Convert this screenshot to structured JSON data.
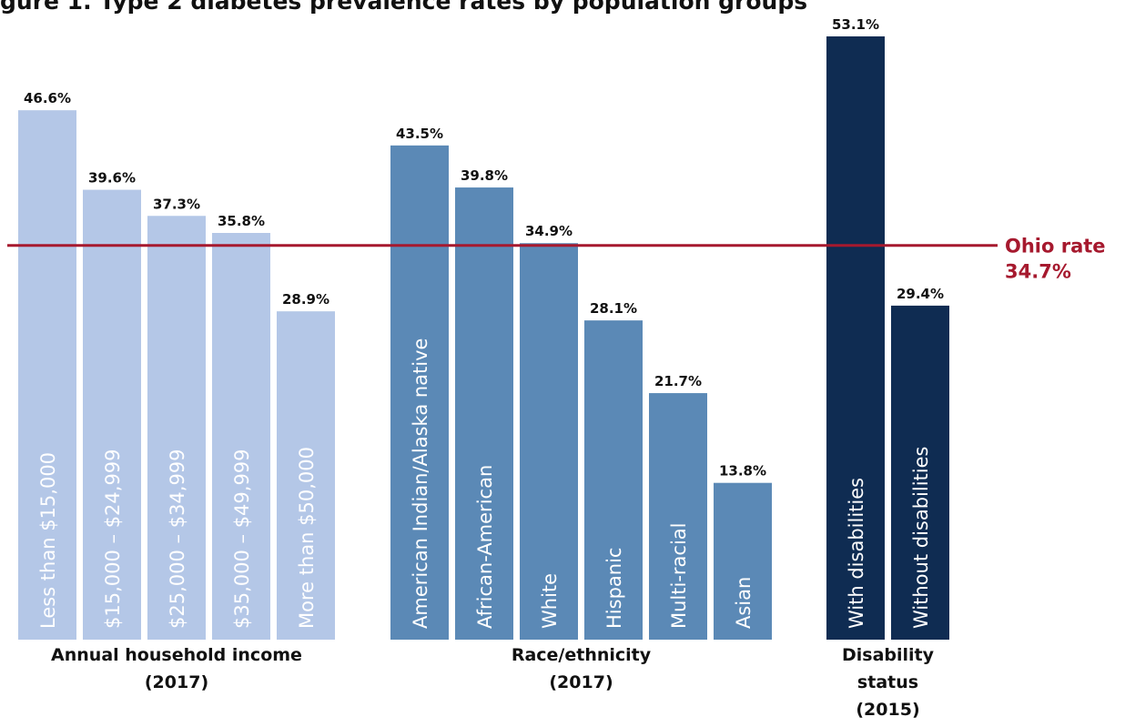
{
  "chart_data": {
    "type": "bar",
    "title": "gure 1. Type 2 diabetes prevalence rates by population groups",
    "groups": [
      {
        "name": "Annual household income",
        "period": "(2017)",
        "color": "#b4c7e7",
        "bars": [
          {
            "category": "Less than $15,000",
            "value": 46.6,
            "value_label": "46.6%"
          },
          {
            "category": "$15,000 – $24,999",
            "value": 39.6,
            "value_label": "39.6%"
          },
          {
            "category": "$25,000 – $34,999",
            "value": 37.3,
            "value_label": "37.3%"
          },
          {
            "category": "$35,000 – $49,999",
            "value": 35.8,
            "value_label": "35.8%"
          },
          {
            "category": "More than $50,000",
            "value": 28.9,
            "value_label": "28.9%"
          }
        ]
      },
      {
        "name": "Race/ethnicity",
        "period": "(2017)",
        "color": "#5b89b6",
        "bars": [
          {
            "category": "American Indian/Alaska native",
            "value": 43.5,
            "value_label": "43.5%"
          },
          {
            "category": "African-American",
            "value": 39.8,
            "value_label": "39.8%"
          },
          {
            "category": "White",
            "value": 34.9,
            "value_label": "34.9%"
          },
          {
            "category": "Hispanic",
            "value": 28.1,
            "value_label": "28.1%"
          },
          {
            "category": "Multi-racial",
            "value": 21.7,
            "value_label": "21.7%"
          },
          {
            "category": "Asian",
            "value": 13.8,
            "value_label": "13.8%"
          }
        ]
      },
      {
        "name": "Disability\nstatus",
        "period": "(2015)",
        "color": "#0f2c52",
        "bars": [
          {
            "category": "With disabilities",
            "value": 53.1,
            "value_label": "53.1%"
          },
          {
            "category": "Without disabilities",
            "value": 29.4,
            "value_label": "29.4%"
          }
        ]
      }
    ],
    "reference_line": {
      "label": "Ohio rate",
      "value": 34.7,
      "value_label": "34.7%",
      "color": "#a6192e"
    },
    "ylim": [
      0,
      53.1
    ],
    "grid": false,
    "xlabel": "",
    "ylabel": ""
  }
}
